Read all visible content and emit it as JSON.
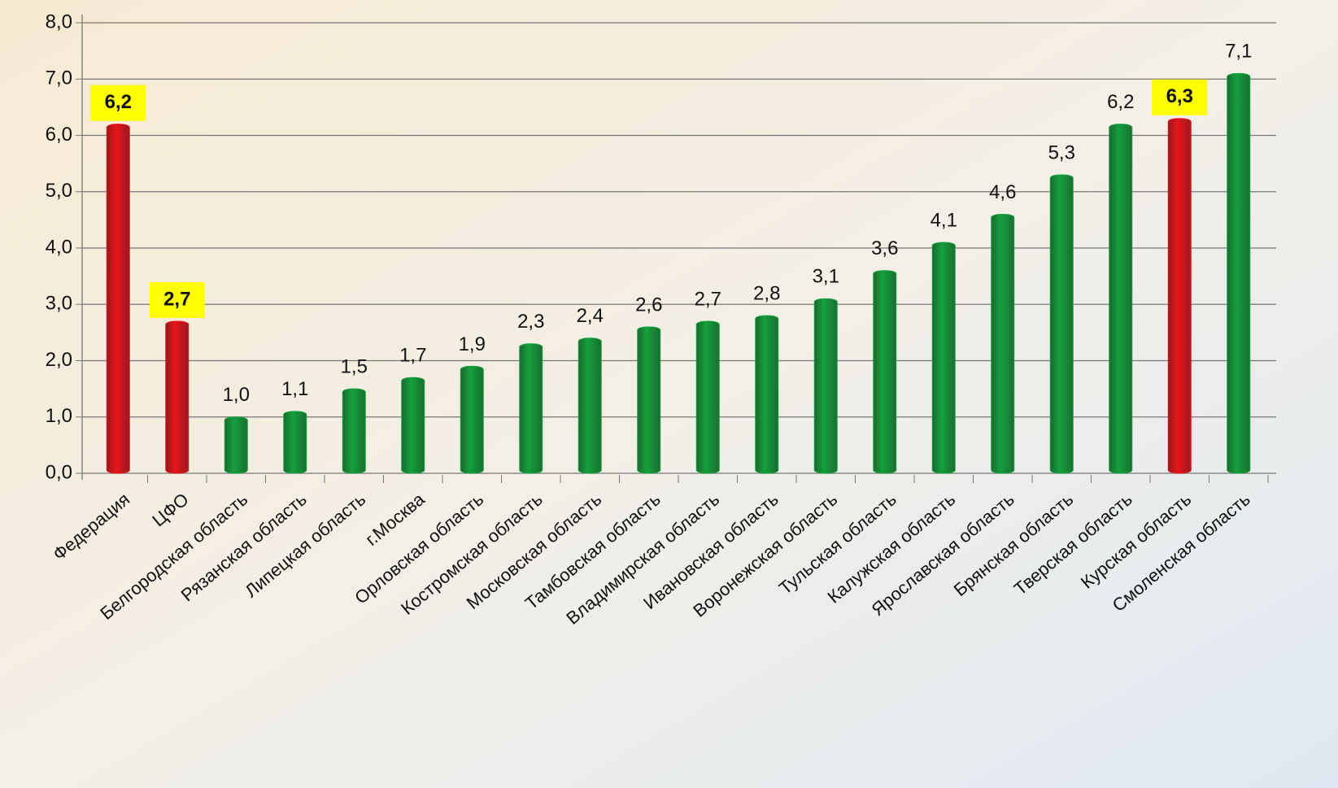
{
  "chart_data": {
    "type": "bar",
    "categories": [
      "Федерация",
      "ЦФО",
      "Белгородская область",
      "Рязанская область",
      "Липецкая область",
      "г.Москва",
      "Орловская область",
      "Костромская область",
      "Московская область",
      "Тамбовская область",
      "Владимирская область",
      "Ивановская область",
      "Воронежская область",
      "Тульская область",
      "Калужская область",
      "Ярославская область",
      "Брянская область",
      "Тверская область",
      "Курская область",
      "Смоленская область"
    ],
    "values": [
      6.2,
      2.7,
      1.0,
      1.1,
      1.5,
      1.7,
      1.9,
      2.3,
      2.4,
      2.6,
      2.7,
      2.8,
      3.1,
      3.6,
      4.1,
      4.6,
      5.3,
      6.2,
      6.3,
      7.1
    ],
    "value_labels": [
      "6,2",
      "2,7",
      "1,0",
      "1,1",
      "1,5",
      "1,7",
      "1,9",
      "2,3",
      "2,4",
      "2,6",
      "2,7",
      "2,8",
      "3,1",
      "3,6",
      "4,1",
      "4,6",
      "5,3",
      "6,2",
      "6,3",
      "7,1"
    ],
    "colors": [
      "#e8141a",
      "#e8141a",
      "#14a03c",
      "#14a03c",
      "#14a03c",
      "#14a03c",
      "#14a03c",
      "#14a03c",
      "#14a03c",
      "#14a03c",
      "#14a03c",
      "#14a03c",
      "#14a03c",
      "#14a03c",
      "#14a03c",
      "#14a03c",
      "#14a03c",
      "#14a03c",
      "#e8141a",
      "#14a03c"
    ],
    "value_label_backgrounds": [
      "#ffff00",
      "#ffff00",
      null,
      null,
      null,
      null,
      null,
      null,
      null,
      null,
      null,
      null,
      null,
      null,
      null,
      null,
      null,
      null,
      "#ffff00",
      null
    ],
    "ylim": [
      0,
      8
    ],
    "yticks": [
      {
        "value": 0,
        "label": "0,0"
      },
      {
        "value": 1,
        "label": "1,0"
      },
      {
        "value": 2,
        "label": "2,0"
      },
      {
        "value": 3,
        "label": "3,0"
      },
      {
        "value": 4,
        "label": "4,0"
      },
      {
        "value": 5,
        "label": "5,0"
      },
      {
        "value": 6,
        "label": "6,0"
      },
      {
        "value": 7,
        "label": "7,0"
      },
      {
        "value": 8,
        "label": "8,0"
      }
    ],
    "grid": true
  }
}
